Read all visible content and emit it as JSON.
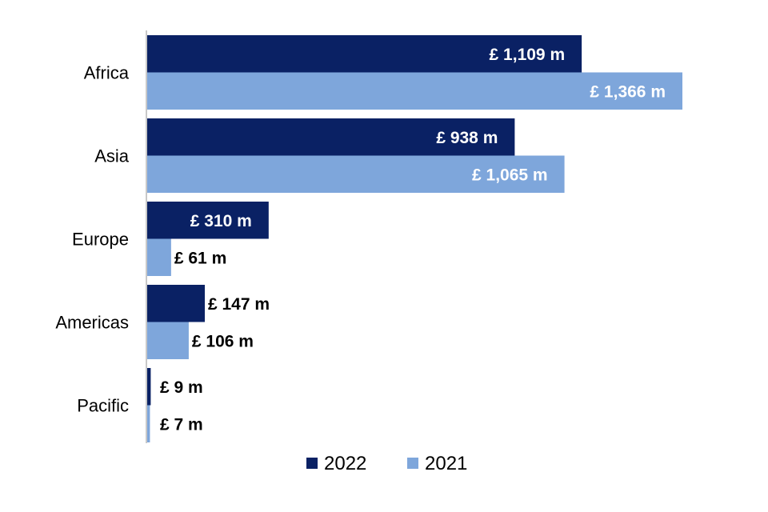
{
  "chart_data": {
    "type": "bar",
    "orientation": "horizontal",
    "categories": [
      "Africa",
      "Asia",
      "Europe",
      "Americas",
      "Pacific"
    ],
    "series": [
      {
        "name": "2022",
        "color": "#0a2164",
        "values": [
          1109,
          938,
          310,
          147,
          9
        ],
        "labels": [
          "£ 1,109 m",
          "£ 938 m",
          "£ 310 m",
          "£ 147 m",
          "£ 9 m"
        ]
      },
      {
        "name": "2021",
        "color": "#7ea6db",
        "values": [
          1366,
          1065,
          61,
          106,
          7
        ],
        "labels": [
          "£ 1,366 m",
          "£ 1,065 m",
          "£ 61 m",
          "£ 106 m",
          "£ 7 m"
        ]
      }
    ],
    "unit": "£ m",
    "xlim": [
      0,
      1400
    ],
    "grid": false,
    "legend_position": "bottom",
    "title": "",
    "xlabel": "",
    "ylabel": ""
  }
}
